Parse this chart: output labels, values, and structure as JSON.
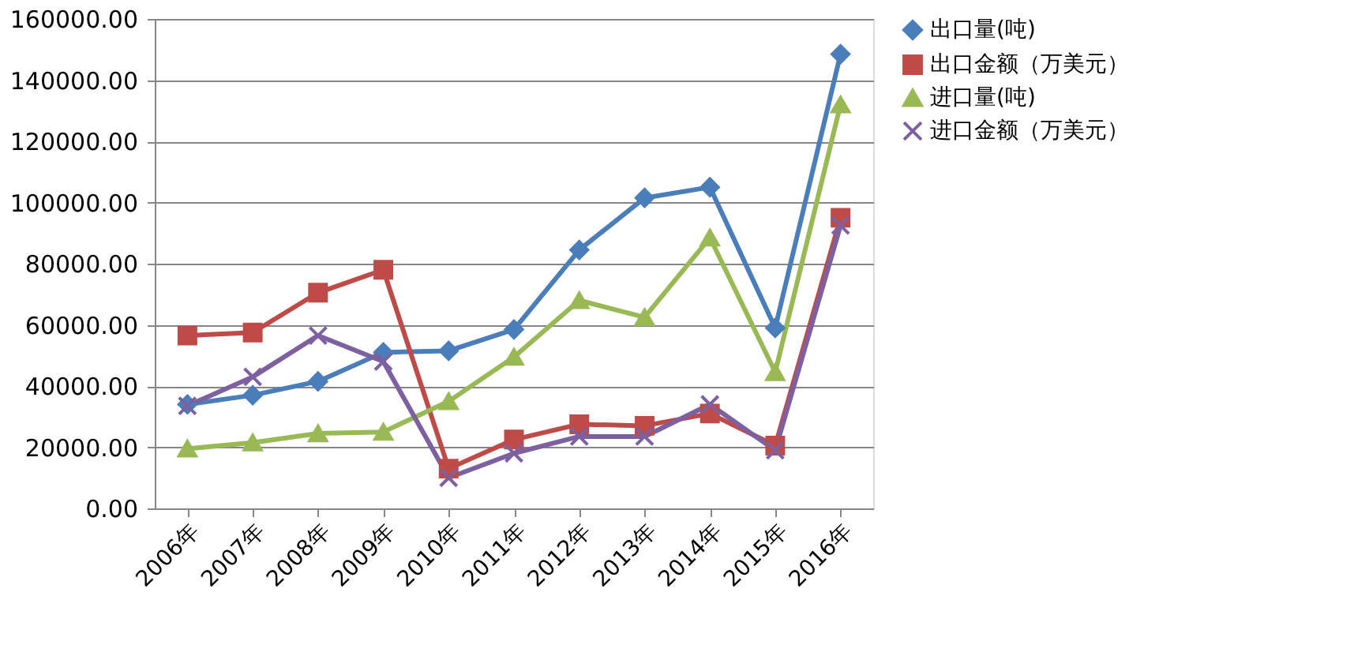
{
  "chart_data": {
    "type": "line",
    "categories": [
      "2006年",
      "2007年",
      "2008年",
      "2009年",
      "2010年",
      "2011年",
      "2012年",
      "2013年",
      "2014年",
      "2015年",
      "2016年"
    ],
    "series": [
      {
        "name": "出口量(吨)",
        "color": "#4a7ebb",
        "marker": "diamond",
        "values": [
          34000,
          37000,
          41500,
          51000,
          51500,
          58500,
          84500,
          101500,
          105000,
          59000,
          148500
        ]
      },
      {
        "name": "出口金额（万美元）",
        "color": "#be4b48",
        "marker": "square",
        "values": [
          56500,
          57500,
          70500,
          78000,
          13000,
          22500,
          27500,
          27000,
          31000,
          20500,
          95000
        ]
      },
      {
        "name": "进口量(吨)",
        "color": "#98b954",
        "marker": "triangle",
        "values": [
          19500,
          21500,
          24500,
          25000,
          35000,
          49500,
          68000,
          62500,
          88500,
          44500,
          132000
        ]
      },
      {
        "name": "进口金额（万美元）",
        "color": "#7d60a0",
        "marker": "cross",
        "values": [
          33500,
          43000,
          56500,
          48000,
          10000,
          18000,
          23500,
          23500,
          34000,
          19000,
          92500
        ]
      }
    ],
    "ylim": [
      0,
      160000
    ],
    "yticks": [
      {
        "value": 0,
        "label": "0.00"
      },
      {
        "value": 20000,
        "label": "20000.00"
      },
      {
        "value": 40000,
        "label": "40000.00"
      },
      {
        "value": 60000,
        "label": "60000.00"
      },
      {
        "value": 80000,
        "label": "80000.00"
      },
      {
        "value": 100000,
        "label": "100000.00"
      },
      {
        "value": 120000,
        "label": "120000.00"
      },
      {
        "value": 140000,
        "label": "140000.00"
      },
      {
        "value": 160000,
        "label": "160000.00"
      }
    ],
    "grid": "y",
    "legend": "right",
    "line_style": "solid"
  }
}
